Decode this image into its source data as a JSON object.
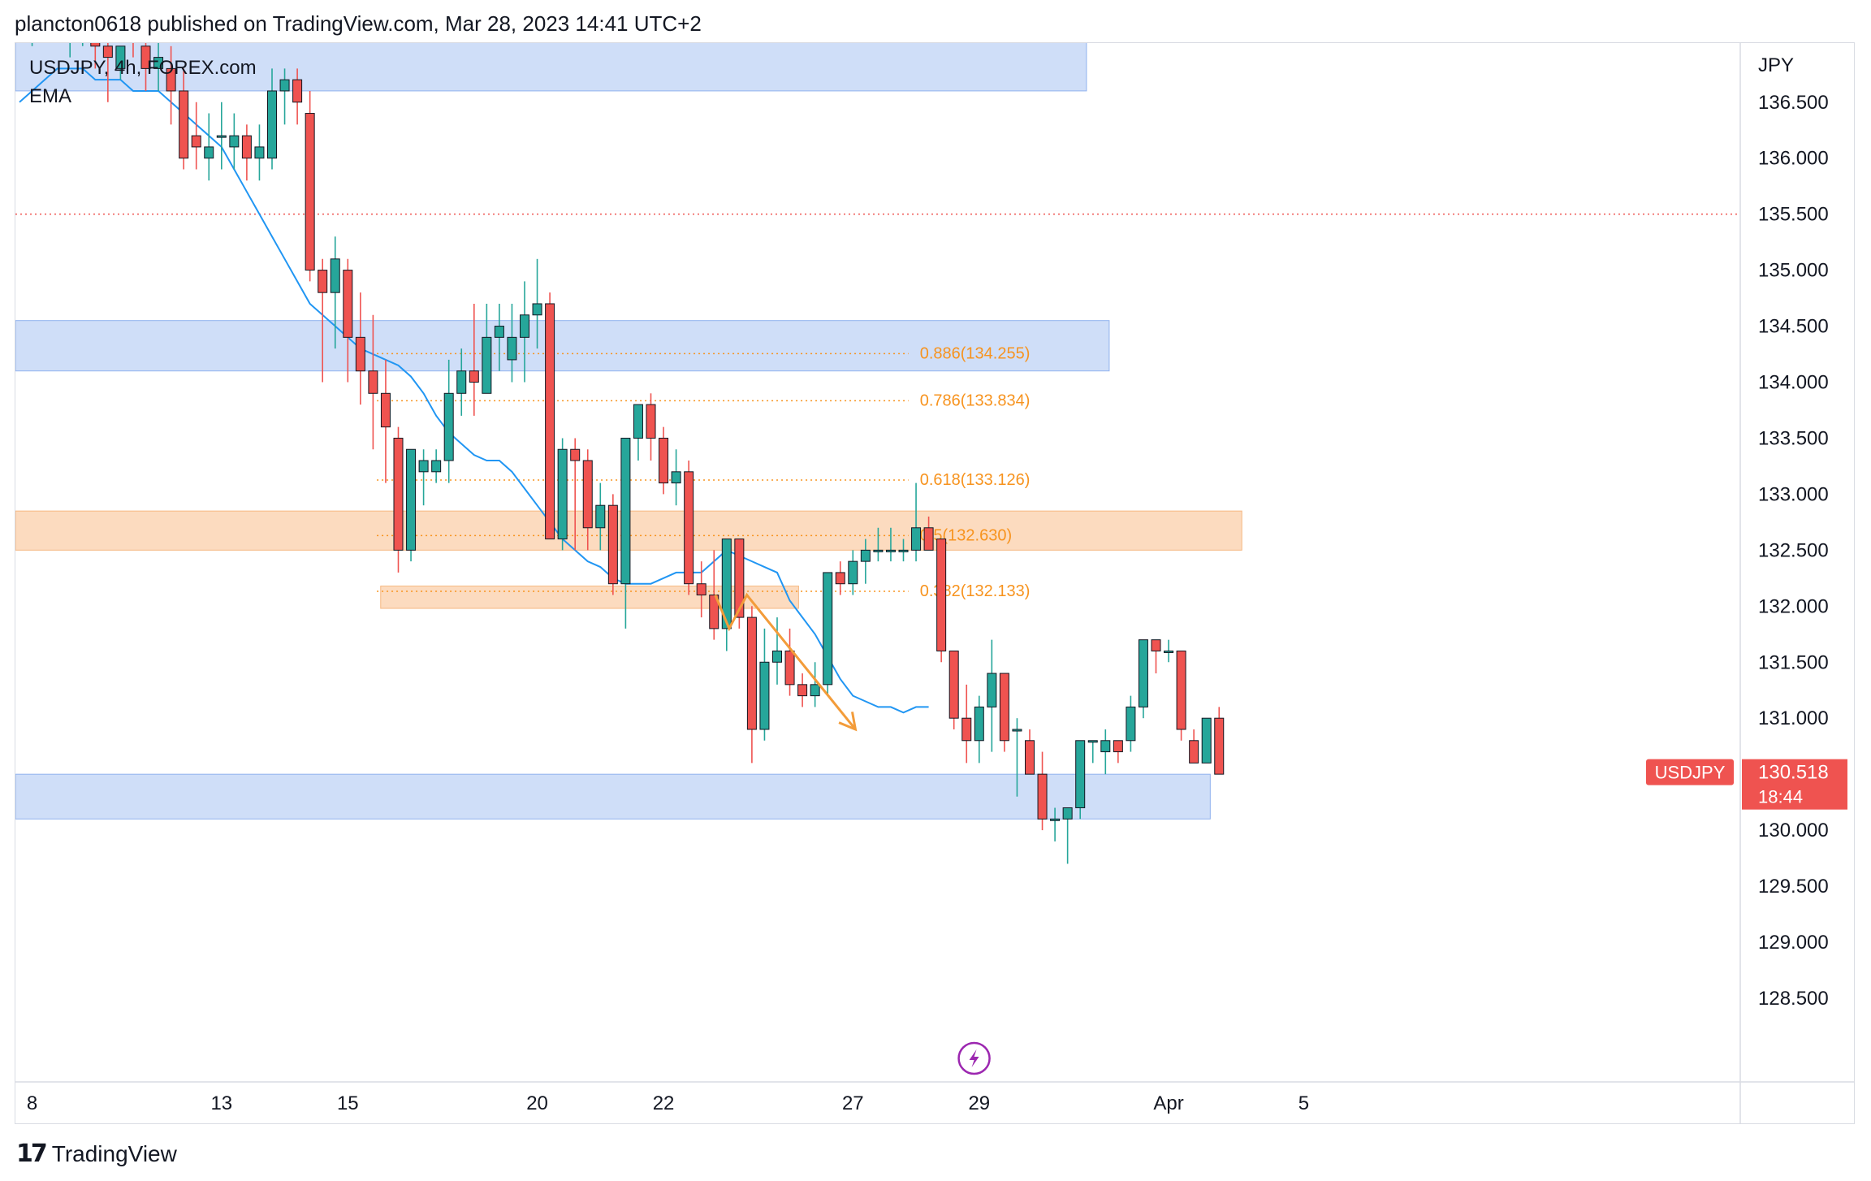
{
  "header": {
    "publisher_line": "plancton0618 published on TradingView.com, Mar 28, 2023 14:41 UTC+2"
  },
  "legend": {
    "symbol_line": "USDJPY, 4h, FOREX.com",
    "indicator": "EMA"
  },
  "footer": {
    "brand": "TradingView",
    "brand_icon": "tradingview-logo-icon"
  },
  "colors": {
    "up": "#26a69a",
    "down": "#ef5350",
    "ema": "#2196f3",
    "blue_zone": "rgba(118,160,235,0.35)",
    "orange_zone": "rgba(247,166,94,0.40)",
    "fib": "#f7931e",
    "price_tag": "#ef5350",
    "arrow": "#f39c3a"
  },
  "chart_data": {
    "type": "candlestick",
    "symbol": "USDJPY",
    "timeframe": "4h",
    "source": "FOREX.com",
    "ylabel": "JPY",
    "ylim": [
      128.0,
      137.3
    ],
    "y_ticks": [
      "136.500",
      "136.000",
      "135.500",
      "135.000",
      "134.500",
      "134.000",
      "133.500",
      "133.000",
      "132.500",
      "132.000",
      "131.500",
      "131.000",
      "130.500",
      "130.000",
      "129.500",
      "129.000",
      "128.500"
    ],
    "x_ticks": [
      {
        "label": "8",
        "bar": 1
      },
      {
        "label": "13",
        "bar": 16
      },
      {
        "label": "15",
        "bar": 26
      },
      {
        "label": "20",
        "bar": 41
      },
      {
        "label": "22",
        "bar": 51
      },
      {
        "label": "27",
        "bar": 66
      },
      {
        "label": "29",
        "bar": 76
      },
      {
        "label": "Apr",
        "bar": 91
      },
      {
        "label": "5",
        "bar": 101.7
      }
    ],
    "candles": [
      [
        137.4,
        137.5,
        137.1,
        137.3
      ],
      [
        137.3,
        137.6,
        137.0,
        137.4
      ],
      [
        137.4,
        137.7,
        137.2,
        137.5
      ],
      [
        137.5,
        137.6,
        137.1,
        137.2
      ],
      [
        137.2,
        137.5,
        136.9,
        137.3
      ],
      [
        137.3,
        137.6,
        137.0,
        137.4
      ],
      [
        137.3,
        137.5,
        136.8,
        137.0
      ],
      [
        137.0,
        137.1,
        136.5,
        136.9
      ],
      [
        136.8,
        137.0,
        136.7,
        137.0
      ],
      [
        137.2,
        137.4,
        136.9,
        137.1
      ],
      [
        137.0,
        137.2,
        136.6,
        136.8
      ],
      [
        136.8,
        137.1,
        136.6,
        136.9
      ],
      [
        136.8,
        137.0,
        136.3,
        136.6
      ],
      [
        136.6,
        136.8,
        135.9,
        136.0
      ],
      [
        136.2,
        136.5,
        135.9,
        136.1
      ],
      [
        136.0,
        136.4,
        135.8,
        136.1
      ],
      [
        136.2,
        136.5,
        135.9,
        136.2
      ],
      [
        136.1,
        136.4,
        135.9,
        136.2
      ],
      [
        136.2,
        136.3,
        135.8,
        136.0
      ],
      [
        136.0,
        136.3,
        135.8,
        136.1
      ],
      [
        136.0,
        136.8,
        135.9,
        136.6
      ],
      [
        136.6,
        136.8,
        136.3,
        136.7
      ],
      [
        136.7,
        136.8,
        136.3,
        136.5
      ],
      [
        136.4,
        136.6,
        134.9,
        135.0
      ],
      [
        135.0,
        135.1,
        134.0,
        134.8
      ],
      [
        134.8,
        135.3,
        134.3,
        135.1
      ],
      [
        135.0,
        135.1,
        134.0,
        134.4
      ],
      [
        134.4,
        134.8,
        133.8,
        134.1
      ],
      [
        134.1,
        134.6,
        133.4,
        133.9
      ],
      [
        133.9,
        134.2,
        133.1,
        133.6
      ],
      [
        133.5,
        133.6,
        132.3,
        132.5
      ],
      [
        132.5,
        133.4,
        132.4,
        133.4
      ],
      [
        133.2,
        133.4,
        132.9,
        133.3
      ],
      [
        133.2,
        133.4,
        133.1,
        133.3
      ],
      [
        133.3,
        134.2,
        133.1,
        133.9
      ],
      [
        133.9,
        134.3,
        133.7,
        134.1
      ],
      [
        134.1,
        134.7,
        133.7,
        134.0
      ],
      [
        133.9,
        134.7,
        133.9,
        134.4
      ],
      [
        134.4,
        134.7,
        134.1,
        134.5
      ],
      [
        134.2,
        134.7,
        134.0,
        134.4
      ],
      [
        134.4,
        134.9,
        134.0,
        134.6
      ],
      [
        134.6,
        135.1,
        134.3,
        134.7
      ],
      [
        134.7,
        134.8,
        132.6,
        132.6
      ],
      [
        132.6,
        133.5,
        132.5,
        133.4
      ],
      [
        133.4,
        133.5,
        132.5,
        133.3
      ],
      [
        133.3,
        133.4,
        132.5,
        132.7
      ],
      [
        132.7,
        133.1,
        132.5,
        132.9
      ],
      [
        132.9,
        133.0,
        132.1,
        132.2
      ],
      [
        132.2,
        133.5,
        131.8,
        133.5
      ],
      [
        133.5,
        133.8,
        133.3,
        133.8
      ],
      [
        133.8,
        133.9,
        133.3,
        133.5
      ],
      [
        133.5,
        133.6,
        133.0,
        133.1
      ],
      [
        133.1,
        133.4,
        132.9,
        133.2
      ],
      [
        133.2,
        133.3,
        132.1,
        132.2
      ],
      [
        132.2,
        132.4,
        131.9,
        132.1
      ],
      [
        132.1,
        132.5,
        131.7,
        131.8
      ],
      [
        131.8,
        132.6,
        131.6,
        132.6
      ],
      [
        132.6,
        132.6,
        131.8,
        131.9
      ],
      [
        131.9,
        132.0,
        130.6,
        130.9
      ],
      [
        130.9,
        131.8,
        130.8,
        131.5
      ],
      [
        131.5,
        131.9,
        131.3,
        131.6
      ],
      [
        131.6,
        131.8,
        131.2,
        131.3
      ],
      [
        131.3,
        131.4,
        131.1,
        131.2
      ],
      [
        131.2,
        131.5,
        131.1,
        131.3
      ],
      [
        131.3,
        132.3,
        131.2,
        132.3
      ],
      [
        132.3,
        132.4,
        132.1,
        132.2
      ],
      [
        132.2,
        132.5,
        132.1,
        132.4
      ],
      [
        132.4,
        132.6,
        132.2,
        132.5
      ],
      [
        132.5,
        132.7,
        132.4,
        132.5
      ],
      [
        132.5,
        132.7,
        132.4,
        132.5
      ],
      [
        132.5,
        132.6,
        132.4,
        132.5
      ],
      [
        132.5,
        133.1,
        132.4,
        132.7
      ],
      [
        132.7,
        132.8,
        132.5,
        132.5
      ],
      [
        132.6,
        132.6,
        131.5,
        131.6
      ],
      [
        131.6,
        131.6,
        130.9,
        131.0
      ],
      [
        131.0,
        131.3,
        130.6,
        130.8
      ],
      [
        130.8,
        131.2,
        130.6,
        131.1
      ],
      [
        131.1,
        131.7,
        130.7,
        131.4
      ],
      [
        131.4,
        131.4,
        130.7,
        130.8
      ],
      [
        130.9,
        131.0,
        130.3,
        130.9
      ],
      [
        130.8,
        130.9,
        130.5,
        130.5
      ],
      [
        130.5,
        130.7,
        130.0,
        130.1
      ],
      [
        130.1,
        130.2,
        129.9,
        130.1
      ],
      [
        130.1,
        130.2,
        129.7,
        130.2
      ],
      [
        130.2,
        130.8,
        130.1,
        130.8
      ],
      [
        130.8,
        130.8,
        130.6,
        130.8
      ],
      [
        130.7,
        130.9,
        130.5,
        130.8
      ],
      [
        130.8,
        130.8,
        130.6,
        130.7
      ],
      [
        130.8,
        131.2,
        130.7,
        131.1
      ],
      [
        131.1,
        131.7,
        131.0,
        131.7
      ],
      [
        131.7,
        131.7,
        131.4,
        131.6
      ],
      [
        131.6,
        131.7,
        131.5,
        131.6
      ],
      [
        131.6,
        131.6,
        130.8,
        130.9
      ],
      [
        130.8,
        130.9,
        130.6,
        130.6
      ],
      [
        130.6,
        131.0,
        130.6,
        131.0
      ],
      [
        131.0,
        131.1,
        130.5,
        130.5
      ]
    ],
    "ema": [
      136.5,
      136.6,
      136.7,
      136.8,
      136.8,
      136.8,
      136.7,
      136.7,
      136.7,
      136.6,
      136.6,
      136.6,
      136.5,
      136.4,
      136.3,
      136.2,
      136.1,
      135.9,
      135.7,
      135.5,
      135.3,
      135.1,
      134.9,
      134.7,
      134.6,
      134.5,
      134.4,
      134.3,
      134.25,
      134.2,
      134.15,
      134.05,
      133.9,
      133.7,
      133.55,
      133.45,
      133.35,
      133.3,
      133.3,
      133.2,
      133.05,
      132.9,
      132.75,
      132.6,
      132.5,
      132.4,
      132.35,
      132.25,
      132.2,
      132.2,
      132.2,
      132.25,
      132.3,
      132.3,
      132.3,
      132.4,
      132.5,
      132.45,
      132.4,
      132.35,
      132.3,
      132.05,
      131.9,
      131.75,
      131.55,
      131.35,
      131.2,
      131.15,
      131.1,
      131.1,
      131.05,
      131.1,
      131.1
    ],
    "zones": [
      {
        "kind": "blue",
        "y1": 137.5,
        "y2": 136.6,
        "from_bar": 0,
        "to_bar": 84.5
      },
      {
        "kind": "blue",
        "y1": 134.55,
        "y2": 134.1,
        "from_bar": 0,
        "to_bar": 86.3
      },
      {
        "kind": "orange",
        "y1": 132.85,
        "y2": 132.5,
        "from_bar": 0,
        "to_bar": 96.8
      },
      {
        "kind": "orange",
        "y1": 132.18,
        "y2": 131.98,
        "from_bar": 28.6,
        "to_bar": 61.7
      },
      {
        "kind": "blue",
        "y1": 130.5,
        "y2": 130.1,
        "from_bar": 0,
        "to_bar": 94.3
      }
    ],
    "hline": {
      "value": 135.5,
      "style": "dotted",
      "color": "#ef5350"
    },
    "fib_levels": [
      {
        "label": "0.886(134.255)",
        "value": 134.255
      },
      {
        "label": "0.786(133.834)",
        "value": 133.834
      },
      {
        "label": "0.618(133.126)",
        "value": 133.126
      },
      {
        "label": "0.5(132.630)",
        "value": 132.63
      },
      {
        "label": "0.382(132.133)",
        "value": 132.133
      }
    ],
    "fib_from_bar": 28.3,
    "fib_to_bar": 70.4,
    "arrow_path": [
      [
        55.1,
        132.1
      ],
      [
        56.2,
        131.8
      ],
      [
        57.6,
        132.1
      ],
      [
        66.2,
        130.9
      ]
    ],
    "last_price": {
      "symbol": "USDJPY",
      "value": "130.518",
      "countdown": "18:44",
      "level": 130.518
    },
    "alert_icon": "lightning-icon",
    "alert_icon_bar": 75.6
  }
}
